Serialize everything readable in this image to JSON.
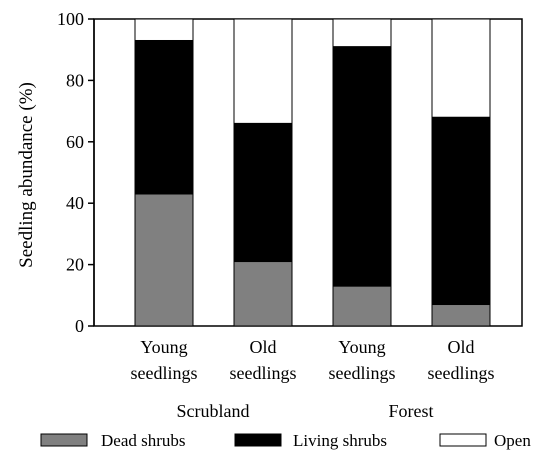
{
  "chart_data": {
    "type": "bar",
    "stacked": true,
    "ylabel": "Seedling abundance (%)",
    "xlabel": "",
    "ylim": [
      0,
      100
    ],
    "yticks": [
      0,
      20,
      40,
      60,
      80,
      100
    ],
    "grid": false,
    "legend_position": "bottom",
    "categories": [
      {
        "line1": "Young",
        "line2": "seedlings"
      },
      {
        "line1": "Old",
        "line2": "seedlings"
      },
      {
        "line1": "Young",
        "line2": "seedlings"
      },
      {
        "line1": "Old",
        "line2": "seedlings"
      }
    ],
    "groups": [
      {
        "label": "Scrubland"
      },
      {
        "label": "Forest"
      }
    ],
    "series": [
      {
        "name": "Dead shrubs",
        "color": "#808080",
        "values": [
          43,
          21,
          13,
          7
        ]
      },
      {
        "name": "Living shrubs",
        "color": "#000000",
        "values": [
          50,
          45,
          78,
          61
        ]
      },
      {
        "name": "Open",
        "color": "#ffffff",
        "values": [
          7,
          34,
          9,
          32
        ]
      }
    ]
  }
}
